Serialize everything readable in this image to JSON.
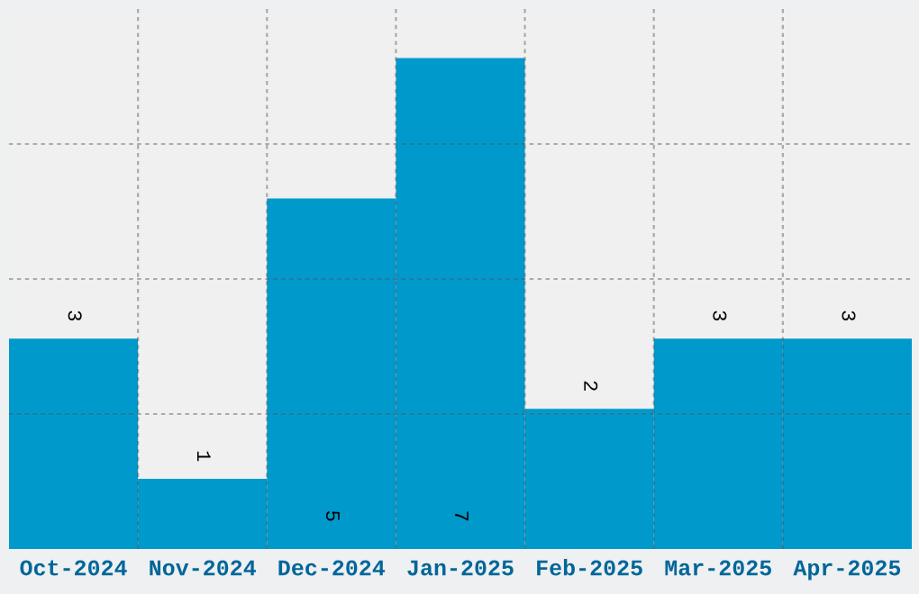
{
  "chart_data": {
    "type": "bar",
    "categories": [
      "Oct-2024",
      "Nov-2024",
      "Dec-2024",
      "Jan-2025",
      "Feb-2025",
      "Mar-2025",
      "Apr-2025"
    ],
    "values": [
      3,
      1,
      5,
      7,
      2,
      3,
      3
    ],
    "color": "#0099cc",
    "ylim": [
      0,
      7.7
    ],
    "yticks": [
      {
        "value": 1.925,
        "label": null
      },
      {
        "value": 3.85,
        "label": null
      },
      {
        "value": 5.775,
        "label": null
      }
    ],
    "tick_labels": "x",
    "grid": true,
    "data_labels": true
  }
}
